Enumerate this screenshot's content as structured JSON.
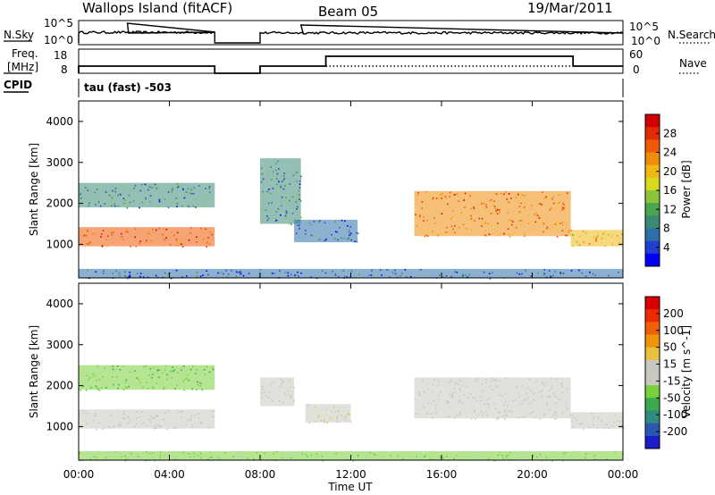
{
  "header": {
    "station": "Wallops Island (fitACF)",
    "beam": "Beam 05",
    "date": "19/Mar/2011"
  },
  "strips": {
    "nsky_label": "N.Sky",
    "nsearch_label": "N.Search",
    "nsky_ticks": [
      "10^5",
      "10^0"
    ],
    "nsearch_ticks": [
      "10^5",
      "10^0"
    ],
    "freq_label_1": "Freq.",
    "freq_label_2": "[MHz]",
    "freq_ticks": [
      "18",
      "8"
    ],
    "nave_label": "Nave",
    "nave_ticks": [
      "60",
      "0"
    ],
    "cpid_label": "CPID",
    "cpid_text": "tau (fast) -503"
  },
  "panels": {
    "ylabel": "Slant Range [km]",
    "yticks": [
      "4000",
      "3000",
      "2000",
      "1000"
    ]
  },
  "xaxis": {
    "ticks": [
      "00:00",
      "04:00",
      "08:00",
      "12:00",
      "16:00",
      "20:00",
      "00:00"
    ],
    "label": "Time UT"
  },
  "power_scale": {
    "label": "Power [dB]",
    "ticks": [
      "28",
      "24",
      "20",
      "16",
      "12",
      "8",
      "4"
    ],
    "colors": [
      "#0000f5",
      "#2040d0",
      "#2d6fa8",
      "#3a8a78",
      "#4aa64c",
      "#8cc53a",
      "#d8d81c",
      "#f0b814",
      "#f08c0c",
      "#ee5a06",
      "#e42a02",
      "#d00000"
    ]
  },
  "velocity_scale": {
    "label": "Velocity [m s^-1]",
    "ticks": [
      "200",
      "100",
      "50",
      "15",
      "-15",
      "-50",
      "-100",
      "-200"
    ],
    "colors": [
      "#1c1cc8",
      "#2a58b0",
      "#2f8a80",
      "#3aaa4c",
      "#78d03a",
      "#c8c8c0",
      "#c8c8c0",
      "#e8c03a",
      "#f0940c",
      "#f06008",
      "#ee2a04",
      "#d80000"
    ]
  },
  "chart_data": [
    {
      "type": "heatmap",
      "title": "Power [dB]",
      "ylabel": "Slant Range [km]",
      "xlabel": "Time UT",
      "xlim": [
        0,
        24
      ],
      "ylim": [
        180,
        4500
      ],
      "zlim": [
        0,
        30
      ],
      "regions": [
        {
          "t_start": 0.0,
          "t_end": 6.0,
          "r_start": 950,
          "r_end": 1420,
          "value": 24
        },
        {
          "t_start": 0.0,
          "t_end": 6.0,
          "r_start": 1900,
          "r_end": 2500,
          "value": 8
        },
        {
          "t_start": 8.0,
          "t_end": 9.8,
          "r_start": 1500,
          "r_end": 3100,
          "value": 8
        },
        {
          "t_start": 9.5,
          "t_end": 12.3,
          "r_start": 1050,
          "r_end": 1600,
          "value": 6
        },
        {
          "t_start": 14.8,
          "t_end": 21.7,
          "r_start": 1200,
          "r_end": 2300,
          "value": 22
        },
        {
          "t_start": 21.7,
          "t_end": 24.0,
          "r_start": 950,
          "r_end": 1350,
          "value": 18
        },
        {
          "t_start": 0.0,
          "t_end": 24.0,
          "r_start": 180,
          "r_end": 400,
          "value": 5
        }
      ]
    },
    {
      "type": "heatmap",
      "title": "Velocity [m s^-1]",
      "ylabel": "Slant Range [km]",
      "xlabel": "Time UT",
      "xlim": [
        0,
        24
      ],
      "ylim": [
        180,
        4500
      ],
      "zlim": [
        -200,
        200
      ],
      "regions": [
        {
          "t_start": 0.0,
          "t_end": 6.0,
          "r_start": 950,
          "r_end": 1420,
          "value": 0
        },
        {
          "t_start": 0.0,
          "t_end": 6.0,
          "r_start": 1900,
          "r_end": 2500,
          "value": -60
        },
        {
          "t_start": 8.0,
          "t_end": 9.5,
          "r_start": 1500,
          "r_end": 2200,
          "value": 0
        },
        {
          "t_start": 10.0,
          "t_end": 12.0,
          "r_start": 1100,
          "r_end": 1550,
          "value": 30
        },
        {
          "t_start": 14.8,
          "t_end": 21.7,
          "r_start": 1200,
          "r_end": 2200,
          "value": 0
        },
        {
          "t_start": 21.7,
          "t_end": 24.0,
          "r_start": 950,
          "r_end": 1350,
          "value": 0
        },
        {
          "t_start": 0.0,
          "t_end": 24.0,
          "r_start": 180,
          "r_end": 400,
          "value": -40
        }
      ]
    }
  ]
}
